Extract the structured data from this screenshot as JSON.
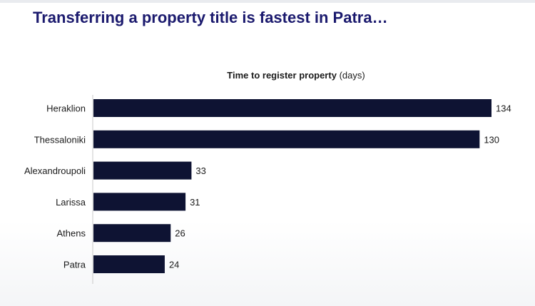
{
  "slide": {
    "title": "Transferring a property title is fastest in Patra…"
  },
  "chart_data": {
    "type": "bar",
    "orientation": "horizontal",
    "title": "Time to register property",
    "unit": "(days)",
    "categories": [
      "Heraklion",
      "Thessaloniki",
      "Alexandroupoli",
      "Larissa",
      "Athens",
      "Patra"
    ],
    "values": [
      134,
      130,
      33,
      31,
      26,
      24
    ],
    "xlim": [
      0,
      134
    ],
    "bar_color": "#0e1333",
    "grid": false,
    "legend": "none",
    "data_labels": true
  }
}
